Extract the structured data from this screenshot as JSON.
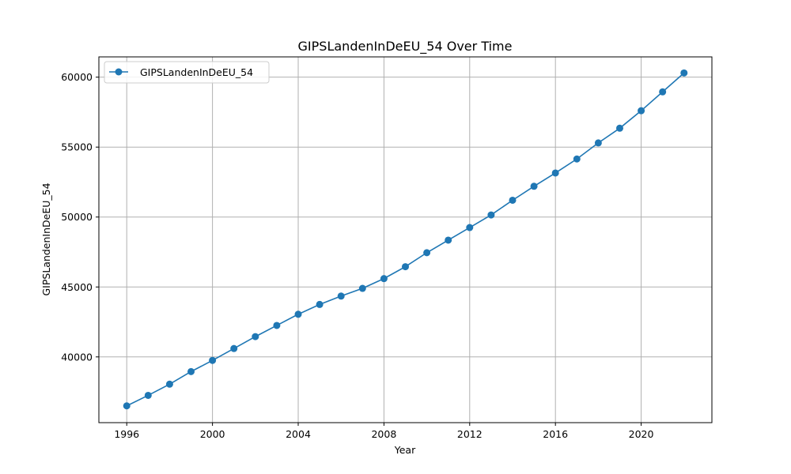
{
  "chart_data": {
    "type": "line",
    "title": "GIPSLandenInDeEU_54 Over Time",
    "xlabel": "Year",
    "ylabel": "GIPSLandenInDeEU_54",
    "xlim": [
      1994.7,
      2023.3
    ],
    "ylim": [
      35300,
      61450
    ],
    "x_ticks": [
      1996,
      2000,
      2004,
      2008,
      2012,
      2016,
      2020
    ],
    "y_ticks": [
      40000,
      45000,
      50000,
      55000,
      60000
    ],
    "grid": true,
    "legend_position": "top-left",
    "series": [
      {
        "name": "GIPSLandenInDeEU_54",
        "color": "#1f77b4",
        "marker": "circle",
        "x": [
          1996,
          1997,
          1998,
          1999,
          2000,
          2001,
          2002,
          2003,
          2004,
          2005,
          2006,
          2007,
          2008,
          2009,
          2010,
          2011,
          2012,
          2013,
          2014,
          2015,
          2016,
          2017,
          2018,
          2019,
          2020,
          2021,
          2022
        ],
        "y": [
          36500,
          37250,
          38050,
          38950,
          39750,
          40600,
          41450,
          42250,
          43050,
          43750,
          44350,
          44900,
          45600,
          46450,
          47450,
          48350,
          49250,
          50150,
          51200,
          52200,
          53150,
          54150,
          55300,
          56350,
          57600,
          58950,
          60300
        ]
      }
    ]
  }
}
